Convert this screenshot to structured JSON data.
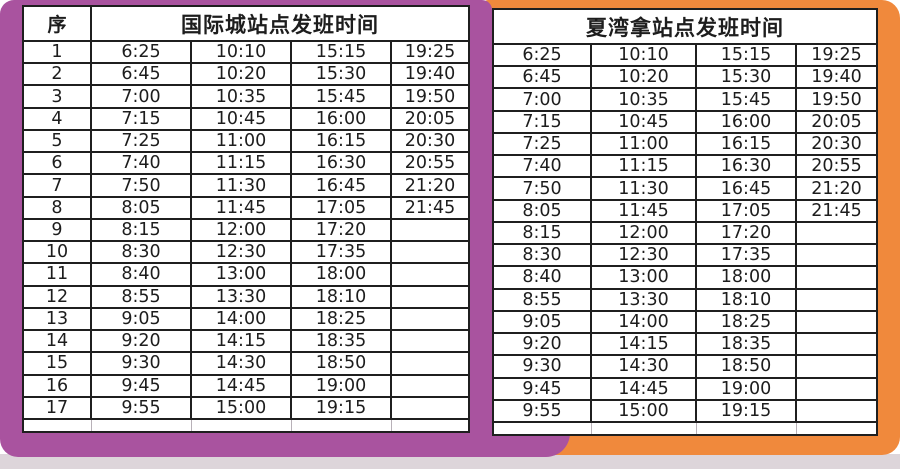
{
  "page": {
    "bottom_strip_color": "#ddd5da",
    "grid_line_color": "#1f1f1f"
  },
  "tables": [
    {
      "id": "intl-city",
      "title": "国际城站点发班时间",
      "seq_header": "序",
      "frame_color": "#a9539f",
      "rows": [
        {
          "seq": "1",
          "times": [
            "6:25",
            "10:10",
            "15:15",
            "19:25"
          ]
        },
        {
          "seq": "2",
          "times": [
            "6:45",
            "10:20",
            "15:30",
            "19:40"
          ]
        },
        {
          "seq": "3",
          "times": [
            "7:00",
            "10:35",
            "15:45",
            "19:50"
          ]
        },
        {
          "seq": "4",
          "times": [
            "7:15",
            "10:45",
            "16:00",
            "20:05"
          ]
        },
        {
          "seq": "5",
          "times": [
            "7:25",
            "11:00",
            "16:15",
            "20:30"
          ]
        },
        {
          "seq": "6",
          "times": [
            "7:40",
            "11:15",
            "16:30",
            "20:55"
          ]
        },
        {
          "seq": "7",
          "times": [
            "7:50",
            "11:30",
            "16:45",
            "21:20"
          ]
        },
        {
          "seq": "8",
          "times": [
            "8:05",
            "11:45",
            "17:05",
            "21:45"
          ]
        },
        {
          "seq": "9",
          "times": [
            "8:15",
            "12:00",
            "17:20",
            ""
          ]
        },
        {
          "seq": "10",
          "times": [
            "8:30",
            "12:30",
            "17:35",
            ""
          ]
        },
        {
          "seq": "11",
          "times": [
            "8:40",
            "13:00",
            "18:00",
            ""
          ]
        },
        {
          "seq": "12",
          "times": [
            "8:55",
            "13:30",
            "18:10",
            ""
          ]
        },
        {
          "seq": "13",
          "times": [
            "9:05",
            "14:00",
            "18:25",
            ""
          ]
        },
        {
          "seq": "14",
          "times": [
            "9:20",
            "14:15",
            "18:35",
            ""
          ]
        },
        {
          "seq": "15",
          "times": [
            "9:30",
            "14:30",
            "18:50",
            ""
          ]
        },
        {
          "seq": "16",
          "times": [
            "9:45",
            "14:45",
            "19:00",
            ""
          ]
        },
        {
          "seq": "17",
          "times": [
            "9:55",
            "15:00",
            "19:15",
            ""
          ]
        }
      ]
    },
    {
      "id": "xiawanna",
      "title": "夏湾拿站点发班时间",
      "frame_color": "#f0893c",
      "rows": [
        {
          "times": [
            "6:25",
            "10:10",
            "15:15",
            "19:25"
          ]
        },
        {
          "times": [
            "6:45",
            "10:20",
            "15:30",
            "19:40"
          ]
        },
        {
          "times": [
            "7:00",
            "10:35",
            "15:45",
            "19:50"
          ]
        },
        {
          "times": [
            "7:15",
            "10:45",
            "16:00",
            "20:05"
          ]
        },
        {
          "times": [
            "7:25",
            "11:00",
            "16:15",
            "20:30"
          ]
        },
        {
          "times": [
            "7:40",
            "11:15",
            "16:30",
            "20:55"
          ]
        },
        {
          "times": [
            "7:50",
            "11:30",
            "16:45",
            "21:20"
          ]
        },
        {
          "times": [
            "8:05",
            "11:45",
            "17:05",
            "21:45"
          ]
        },
        {
          "times": [
            "8:15",
            "12:00",
            "17:20",
            ""
          ]
        },
        {
          "times": [
            "8:30",
            "12:30",
            "17:35",
            ""
          ]
        },
        {
          "times": [
            "8:40",
            "13:00",
            "18:00",
            ""
          ]
        },
        {
          "times": [
            "8:55",
            "13:30",
            "18:10",
            ""
          ]
        },
        {
          "times": [
            "9:05",
            "14:00",
            "18:25",
            ""
          ]
        },
        {
          "times": [
            "9:20",
            "14:15",
            "18:35",
            ""
          ]
        },
        {
          "times": [
            "9:30",
            "14:30",
            "18:50",
            ""
          ]
        },
        {
          "times": [
            "9:45",
            "14:45",
            "19:00",
            ""
          ]
        },
        {
          "times": [
            "9:55",
            "15:00",
            "19:15",
            ""
          ]
        }
      ]
    }
  ]
}
